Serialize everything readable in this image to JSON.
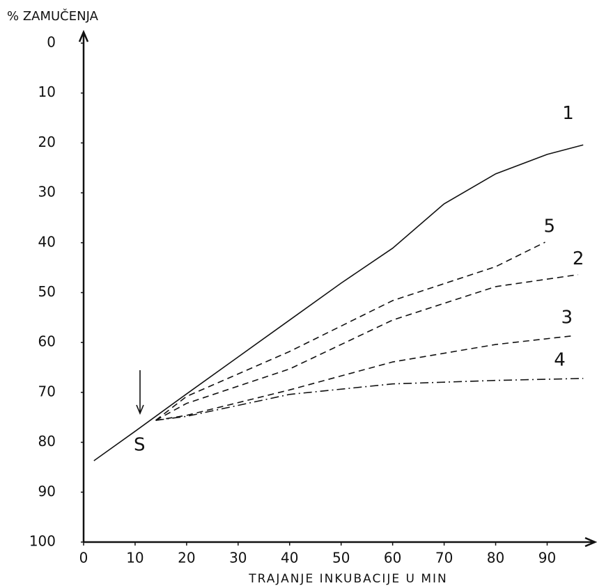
{
  "chart_data": {
    "type": "line",
    "y_label": "% ZAMUČENJA",
    "x_label": "TRAJANJE INKUBACIJE U MIN",
    "annotation": "S",
    "xlim": [
      0,
      99
    ],
    "xticks": [
      0,
      10,
      20,
      30,
      40,
      50,
      60,
      70,
      80,
      90
    ],
    "ylim": [
      100,
      0
    ],
    "yticks": [
      0,
      10,
      20,
      30,
      40,
      50,
      60,
      70,
      80,
      90,
      100
    ],
    "grid": false,
    "series": [
      {
        "name": "1",
        "color": "#111111",
        "dash": "solid",
        "x": [
          2,
          10,
          20,
          30,
          40,
          50,
          60,
          70,
          80,
          90,
          97
        ],
        "values": [
          83.7,
          77.8,
          70.3,
          62.9,
          55.5,
          48.1,
          41.1,
          32.2,
          26.2,
          22.3,
          20.4
        ]
      },
      {
        "name": "5",
        "color": "#111111",
        "dash": "dashed",
        "x": [
          14,
          20,
          40,
          60,
          80,
          89.6
        ],
        "values": [
          75.6,
          70.8,
          61.8,
          51.6,
          44.8,
          39.9
        ]
      },
      {
        "name": "2",
        "color": "#111111",
        "dash": "dashed",
        "x": [
          14,
          20,
          40,
          60,
          80,
          96
        ],
        "values": [
          75.6,
          72.2,
          65.3,
          55.5,
          48.8,
          46.4
        ]
      },
      {
        "name": "3",
        "color": "#111111",
        "dash": "dashed",
        "x": [
          14,
          20,
          40,
          60,
          80,
          94.6
        ],
        "values": [
          75.6,
          74.6,
          69.5,
          63.9,
          60.4,
          58.7
        ]
      },
      {
        "name": "4",
        "color": "#111111",
        "dash": "dashdot",
        "x": [
          14,
          20,
          40,
          60,
          80,
          97
        ],
        "values": [
          75.6,
          74.8,
          70.4,
          68.3,
          67.6,
          67.2
        ]
      }
    ]
  }
}
